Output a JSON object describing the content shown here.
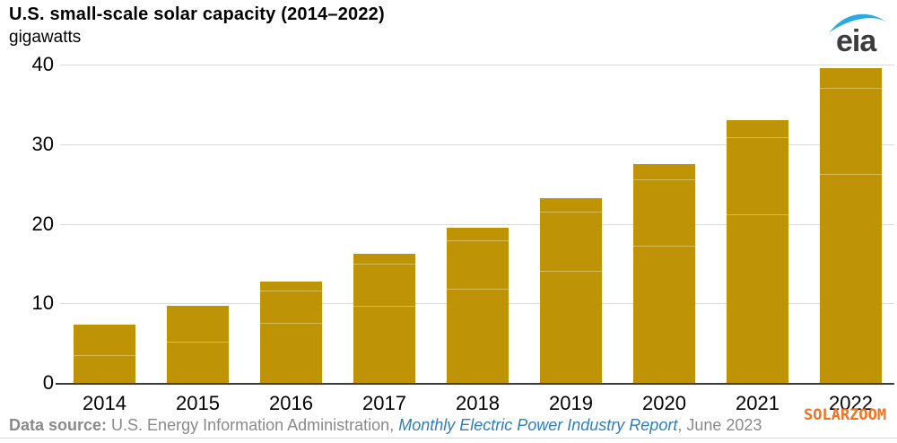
{
  "header": {
    "title": "U.S. small-scale solar capacity (2014–2022)",
    "units": "gigawatts",
    "logo_text": "eia"
  },
  "logo": {
    "swoosh_color": "#2BA9E0",
    "text_color": "#3C3C3C"
  },
  "chart_data": {
    "type": "bar",
    "title": "U.S. small-scale solar capacity (2014–2022)",
    "xlabel": "",
    "ylabel": "gigawatts",
    "categories": [
      "2014",
      "2015",
      "2016",
      "2017",
      "2018",
      "2019",
      "2020",
      "2021",
      "2022"
    ],
    "values": [
      7.3,
      9.7,
      12.7,
      16.2,
      19.5,
      23.2,
      27.5,
      33.0,
      39.5
    ],
    "segment_divider_values": [
      [
        3.4
      ],
      [
        5.1
      ],
      [
        7.4,
        11.5
      ],
      [
        9.6,
        14.9
      ],
      [
        11.7,
        17.8
      ],
      [
        14.0,
        21.4
      ],
      [
        17.1,
        25.5
      ],
      [
        21.1,
        30.8
      ],
      [
        26.1,
        37.0
      ]
    ],
    "ylim": [
      0,
      40
    ],
    "yticks": [
      0,
      10,
      20,
      30,
      40
    ],
    "grid": true,
    "legend_position": "none",
    "colors": {
      "bar": "#BE9406",
      "bar_divider": "#D6BA58",
      "gridline": "#DADADA",
      "axis_line": "#3C3C3C",
      "tick_label": "#000000"
    }
  },
  "footer": {
    "label": "Data source:",
    "text1": " U.S. Energy Information Administration, ",
    "link": "Monthly Electric Power Industry Report",
    "text2": ", June 2023",
    "text_color": "#8A8A8A",
    "link_color": "#2E7EBB"
  },
  "watermark": {
    "text": "SOLARZOOM",
    "color": "#F3711F"
  }
}
